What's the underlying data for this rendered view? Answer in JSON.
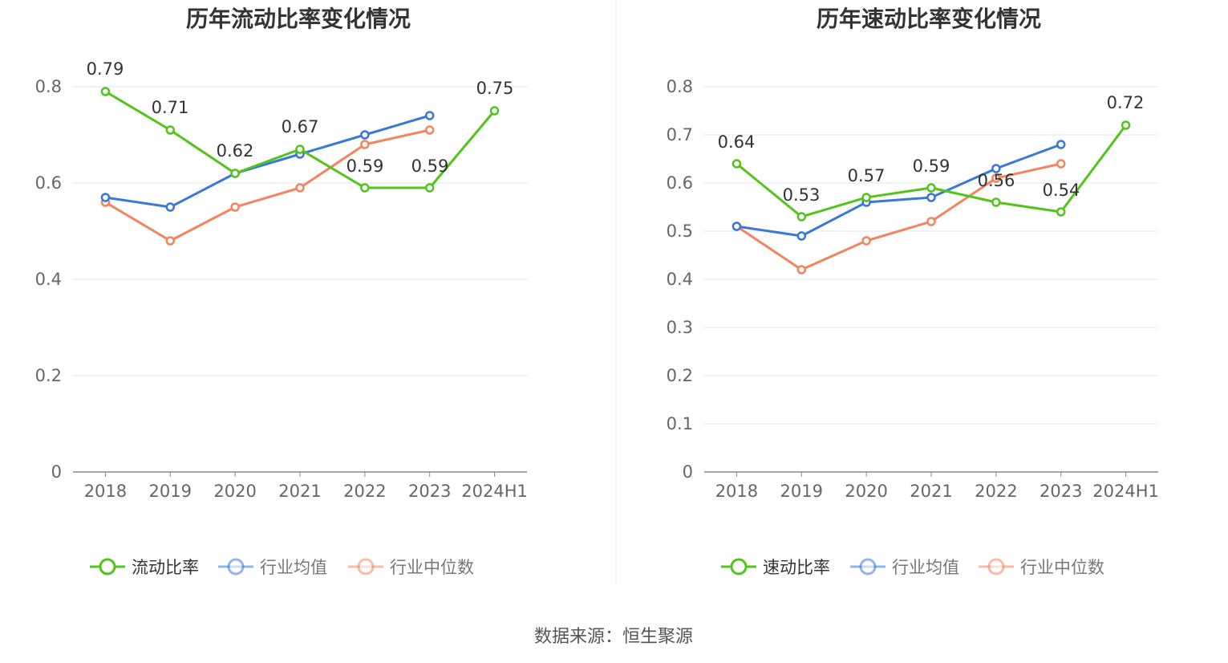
{
  "source_note": "数据来源：恒生聚源",
  "colors": {
    "company": "#52c41a",
    "avg": "#3a78d8",
    "median": "#f4845f",
    "grid": "#e3e6ee",
    "axis": "#888888"
  },
  "chart_data": [
    {
      "type": "line",
      "title": "历年流动比率变化情况",
      "categories": [
        "2018",
        "2019",
        "2020",
        "2021",
        "2022",
        "2023",
        "2024H1"
      ],
      "ylim": [
        0,
        0.8
      ],
      "yticks": [
        "0",
        "0.2",
        "0.4",
        "0.6",
        "0.8"
      ],
      "grid": true,
      "legend_position": "bottom",
      "series": [
        {
          "name": "流动比率",
          "key": "company",
          "values": [
            0.79,
            0.71,
            0.62,
            0.67,
            0.59,
            0.59,
            0.75
          ],
          "labels": [
            "0.79",
            "0.71",
            "0.62",
            "0.67",
            "0.59",
            "0.59",
            "0.75"
          ]
        },
        {
          "name": "行业均值",
          "key": "avg",
          "values": [
            0.57,
            0.55,
            0.62,
            0.66,
            0.7,
            0.74,
            null
          ]
        },
        {
          "name": "行业中位数",
          "key": "median",
          "values": [
            0.56,
            0.48,
            0.55,
            0.59,
            0.68,
            0.71,
            null
          ]
        }
      ]
    },
    {
      "type": "line",
      "title": "历年速动比率变化情况",
      "categories": [
        "2018",
        "2019",
        "2020",
        "2021",
        "2022",
        "2023",
        "2024H1"
      ],
      "ylim": [
        0,
        0.8
      ],
      "yticks": [
        "0",
        "0.1",
        "0.2",
        "0.3",
        "0.4",
        "0.5",
        "0.6",
        "0.7",
        "0.8"
      ],
      "grid": true,
      "legend_position": "bottom",
      "series": [
        {
          "name": "速动比率",
          "key": "company",
          "values": [
            0.64,
            0.53,
            0.57,
            0.59,
            0.56,
            0.54,
            0.72
          ],
          "labels": [
            "0.64",
            "0.53",
            "0.57",
            "0.59",
            "0.56",
            "0.54",
            "0.72"
          ]
        },
        {
          "name": "行业均值",
          "key": "avg",
          "values": [
            0.51,
            0.49,
            0.56,
            0.57,
            0.63,
            0.68,
            null
          ]
        },
        {
          "name": "行业中位数",
          "key": "median",
          "values": [
            0.51,
            0.42,
            0.48,
            0.52,
            0.61,
            0.64,
            null
          ]
        }
      ]
    }
  ]
}
